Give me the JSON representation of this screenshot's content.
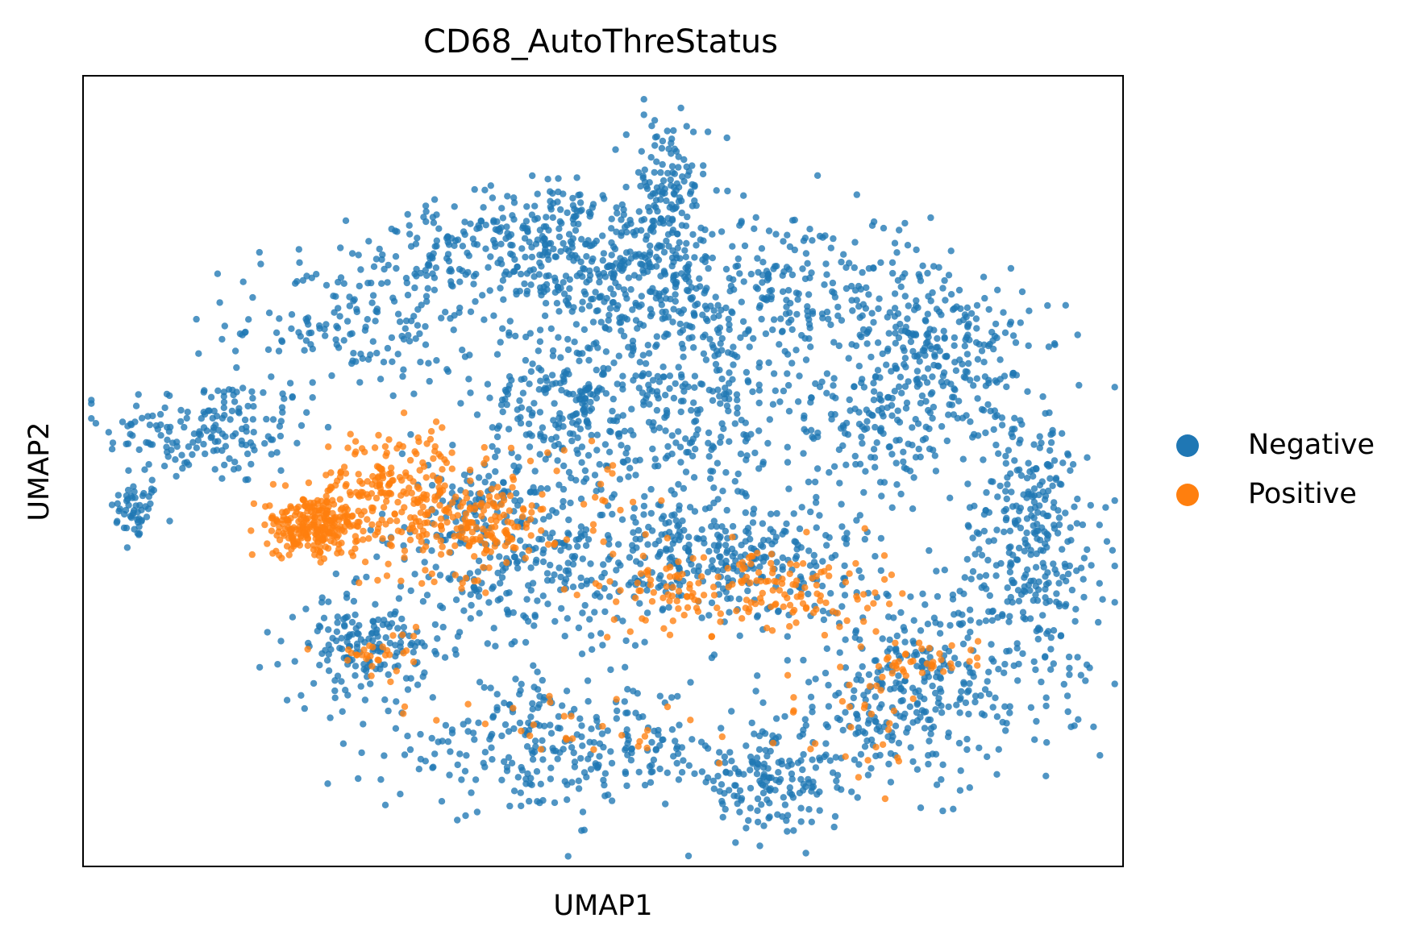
{
  "chart_data": {
    "type": "scatter",
    "title": "CD68_AutoThreStatus",
    "xlabel": "UMAP1",
    "ylabel": "UMAP2",
    "xlim": [
      0,
      100
    ],
    "ylim": [
      0,
      100
    ],
    "grid": false,
    "ticks": false,
    "legend": {
      "placement": "right",
      "entries": [
        {
          "name": "Negative",
          "color": "#1f77b4"
        },
        {
          "name": "Positive",
          "color": "#ff7f0e"
        }
      ]
    },
    "series": [
      {
        "name": "Negative",
        "color": "#1f77b4",
        "clusters": [
          {
            "cx": 5,
            "cy": 45,
            "sx": 1.2,
            "sy": 1.8,
            "n": 50
          },
          {
            "cx": 12,
            "cy": 55,
            "sx": 5,
            "sy": 3.5,
            "n": 170
          },
          {
            "cx": 26,
            "cy": 69,
            "sx": 6,
            "sy": 5,
            "n": 180
          },
          {
            "cx": 35,
            "cy": 78,
            "sx": 3,
            "sy": 3,
            "n": 80
          },
          {
            "cx": 45,
            "cy": 79,
            "sx": 3.5,
            "sy": 4,
            "n": 170
          },
          {
            "cx": 56,
            "cy": 85,
            "sx": 2,
            "sy": 5,
            "n": 130
          },
          {
            "cx": 52,
            "cy": 75,
            "sx": 6,
            "sy": 5,
            "n": 260
          },
          {
            "cx": 58,
            "cy": 60,
            "sx": 6,
            "sy": 8,
            "n": 330
          },
          {
            "cx": 46,
            "cy": 58,
            "sx": 4,
            "sy": 6,
            "n": 210
          },
          {
            "cx": 70,
            "cy": 73,
            "sx": 7,
            "sy": 5,
            "n": 240
          },
          {
            "cx": 83,
            "cy": 64,
            "sx": 4,
            "sy": 6,
            "n": 240
          },
          {
            "cx": 91,
            "cy": 41,
            "sx": 3.5,
            "sy": 9,
            "n": 330
          },
          {
            "cx": 80,
            "cy": 22,
            "sx": 7,
            "sy": 6,
            "n": 330
          },
          {
            "cx": 66,
            "cy": 11,
            "sx": 4,
            "sy": 3,
            "n": 170
          },
          {
            "cx": 45,
            "cy": 15,
            "sx": 8,
            "sy": 4,
            "n": 280
          },
          {
            "cx": 27,
            "cy": 28,
            "sx": 3,
            "sy": 3,
            "n": 160
          },
          {
            "cx": 63,
            "cy": 39,
            "sx": 7,
            "sy": 4,
            "n": 300
          },
          {
            "cx": 43,
            "cy": 37,
            "sx": 7,
            "sy": 5,
            "n": 260
          },
          {
            "cx": 38,
            "cy": 46,
            "sx": 4,
            "sy": 3,
            "n": 80
          },
          {
            "cx": 75,
            "cy": 55,
            "sx": 4,
            "sy": 4,
            "n": 110
          }
        ]
      },
      {
        "name": "Positive",
        "color": "#ff7f0e",
        "clusters": [
          {
            "cx": 22,
            "cy": 43,
            "sx": 2.2,
            "sy": 1.8,
            "n": 230
          },
          {
            "cx": 30,
            "cy": 47,
            "sx": 4,
            "sy": 4,
            "n": 260
          },
          {
            "cx": 39,
            "cy": 43,
            "sx": 3,
            "sy": 3,
            "n": 130
          },
          {
            "cx": 65,
            "cy": 35,
            "sx": 6,
            "sy": 3,
            "n": 150
          },
          {
            "cx": 28,
            "cy": 27,
            "sx": 2,
            "sy": 1.5,
            "n": 30
          },
          {
            "cx": 81,
            "cy": 26,
            "sx": 3,
            "sy": 1.5,
            "n": 40
          },
          {
            "cx": 50,
            "cy": 17,
            "sx": 8,
            "sy": 3,
            "n": 30
          },
          {
            "cx": 75,
            "cy": 18,
            "sx": 4,
            "sy": 4,
            "n": 30
          },
          {
            "cx": 55,
            "cy": 35,
            "sx": 3,
            "sy": 3,
            "n": 30
          },
          {
            "cx": 49,
            "cy": 47,
            "sx": 3,
            "sy": 3,
            "n": 20
          }
        ]
      }
    ]
  }
}
